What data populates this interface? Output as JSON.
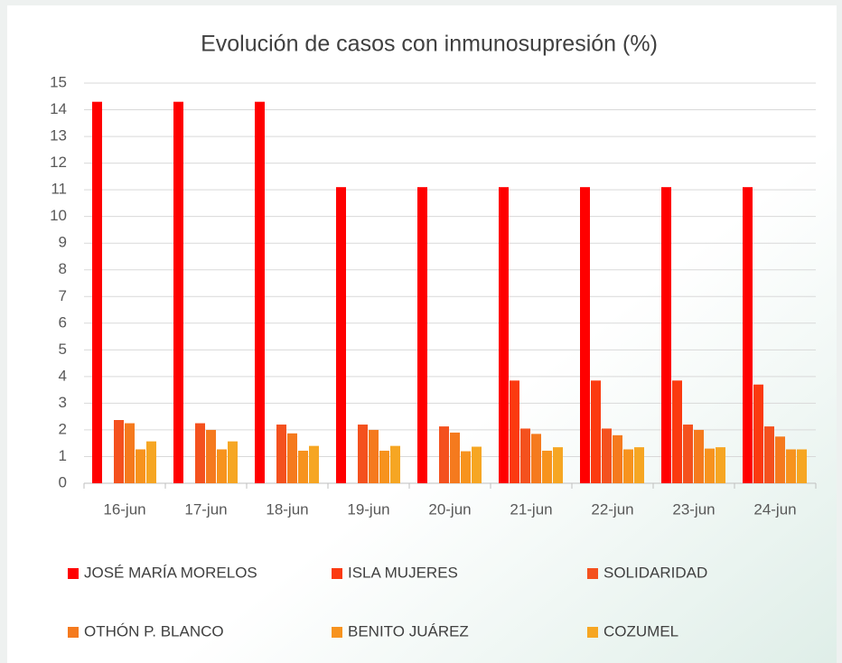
{
  "chart_data": {
    "type": "bar",
    "title": "Evolución de casos con inmunosupresión (%)",
    "categories": [
      "16-jun",
      "17-jun",
      "18-jun",
      "19-jun",
      "20-jun",
      "21-jun",
      "22-jun",
      "23-jun",
      "24-jun"
    ],
    "series": [
      {
        "name": "JOSÉ MARÍA MORELOS",
        "color": "#ff0000",
        "values": [
          14.3,
          14.3,
          14.3,
          11.1,
          11.1,
          11.1,
          11.1,
          11.1,
          11.1
        ]
      },
      {
        "name": "ISLA MUJERES",
        "color": "#fb3a10",
        "values": [
          0,
          0,
          0,
          0,
          0,
          3.85,
          3.85,
          3.85,
          3.7
        ]
      },
      {
        "name": "SOLIDARIDAD",
        "color": "#f4511e",
        "values": [
          2.37,
          2.25,
          2.2,
          2.2,
          2.13,
          2.05,
          2.05,
          2.2,
          2.13
        ]
      },
      {
        "name": "OTHÓN P. BLANCO",
        "color": "#f57a1e",
        "values": [
          2.25,
          2.0,
          1.87,
          2.0,
          1.9,
          1.85,
          1.8,
          2.0,
          1.75
        ]
      },
      {
        "name": "BENITO JUÁREZ",
        "color": "#f7931e",
        "values": [
          1.27,
          1.27,
          1.22,
          1.22,
          1.2,
          1.22,
          1.27,
          1.3,
          1.27
        ]
      },
      {
        "name": "COZUMEL",
        "color": "#f6a623",
        "values": [
          1.57,
          1.57,
          1.4,
          1.4,
          1.37,
          1.35,
          1.35,
          1.35,
          1.27
        ]
      }
    ],
    "ylim": [
      0,
      15
    ],
    "yticks": [
      0,
      1,
      2,
      3,
      4,
      5,
      6,
      7,
      8,
      9,
      10,
      11,
      12,
      13,
      14,
      15
    ],
    "grid": true,
    "legend": "bottom"
  }
}
